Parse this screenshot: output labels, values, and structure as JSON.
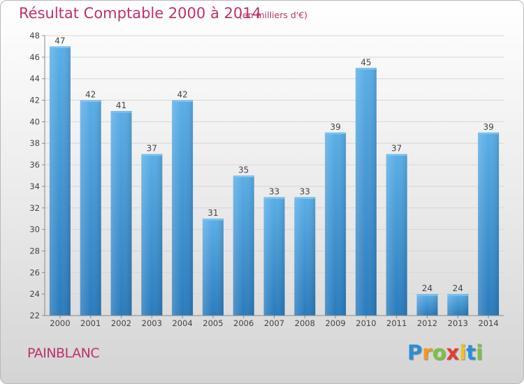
{
  "chart_data": {
    "type": "bar",
    "title": "Résultat Comptable 2000 à 2014",
    "subtitle": "(en milliers d'€)",
    "categories": [
      "2000",
      "2001",
      "2002",
      "2003",
      "2004",
      "2005",
      "2006",
      "2007",
      "2008",
      "2009",
      "2010",
      "2011",
      "2012",
      "2013",
      "2014"
    ],
    "values": [
      47,
      42,
      41,
      37,
      42,
      31,
      35,
      33,
      33,
      39,
      45,
      37,
      24,
      24,
      39
    ],
    "ylim": [
      22,
      48
    ],
    "yticks": [
      22,
      24,
      26,
      28,
      30,
      32,
      34,
      36,
      38,
      40,
      42,
      44,
      46,
      48
    ],
    "xlabel": "",
    "ylabel": "",
    "grid": true,
    "bar_color_top": "#5aaee6",
    "bar_color_bottom": "#2a7bbd"
  },
  "location": "PAINBLANC",
  "brand": {
    "letters": [
      "P",
      "r",
      "o",
      "x",
      "i",
      "t",
      "i"
    ],
    "colors": [
      "#2a8fd6",
      "#f29a1f",
      "#7cc242",
      "#e63b2e",
      "#f2c21f",
      "#2a8fd6",
      "#7cc242"
    ]
  }
}
